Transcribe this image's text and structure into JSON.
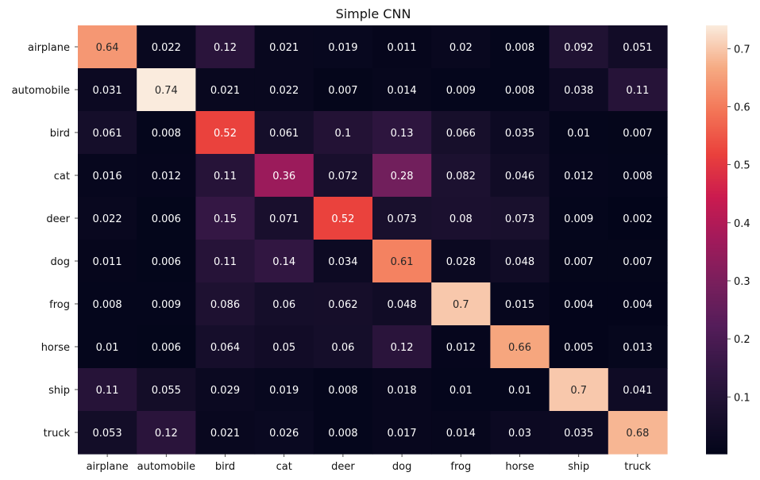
{
  "chart_data": {
    "type": "heatmap",
    "title": "Simple CNN",
    "xlabel": "",
    "ylabel": "",
    "x_categories": [
      "airplane",
      "automobile",
      "bird",
      "cat",
      "deer",
      "dog",
      "frog",
      "horse",
      "ship",
      "truck"
    ],
    "y_categories": [
      "airplane",
      "automobile",
      "bird",
      "cat",
      "deer",
      "dog",
      "frog",
      "horse",
      "ship",
      "truck"
    ],
    "values": [
      [
        0.64,
        0.022,
        0.12,
        0.021,
        0.019,
        0.011,
        0.02,
        0.008,
        0.092,
        0.051
      ],
      [
        0.031,
        0.74,
        0.021,
        0.022,
        0.007,
        0.014,
        0.009,
        0.008,
        0.038,
        0.11
      ],
      [
        0.061,
        0.008,
        0.52,
        0.061,
        0.1,
        0.13,
        0.066,
        0.035,
        0.01,
        0.007
      ],
      [
        0.016,
        0.012,
        0.11,
        0.36,
        0.072,
        0.28,
        0.082,
        0.046,
        0.012,
        0.008
      ],
      [
        0.022,
        0.006,
        0.15,
        0.071,
        0.52,
        0.073,
        0.08,
        0.073,
        0.009,
        0.002
      ],
      [
        0.011,
        0.006,
        0.11,
        0.14,
        0.034,
        0.61,
        0.028,
        0.048,
        0.007,
        0.007
      ],
      [
        0.008,
        0.009,
        0.086,
        0.06,
        0.062,
        0.048,
        0.7,
        0.015,
        0.004,
        0.004
      ],
      [
        0.01,
        0.006,
        0.064,
        0.05,
        0.06,
        0.12,
        0.012,
        0.66,
        0.005,
        0.013
      ],
      [
        0.11,
        0.055,
        0.029,
        0.019,
        0.008,
        0.018,
        0.01,
        0.01,
        0.7,
        0.041
      ],
      [
        0.053,
        0.12,
        0.021,
        0.026,
        0.008,
        0.017,
        0.014,
        0.03,
        0.035,
        0.68
      ]
    ],
    "colorbar": {
      "range": [
        0.002,
        0.74
      ],
      "ticks": [
        0.1,
        0.2,
        0.3,
        0.4,
        0.5,
        0.6,
        0.7
      ],
      "tick_labels": [
        "0.1",
        "0.2",
        "0.3",
        "0.4",
        "0.5",
        "0.6",
        "0.7"
      ]
    },
    "colormap": "rocket",
    "grid": false,
    "legend": "colorbar-right"
  }
}
